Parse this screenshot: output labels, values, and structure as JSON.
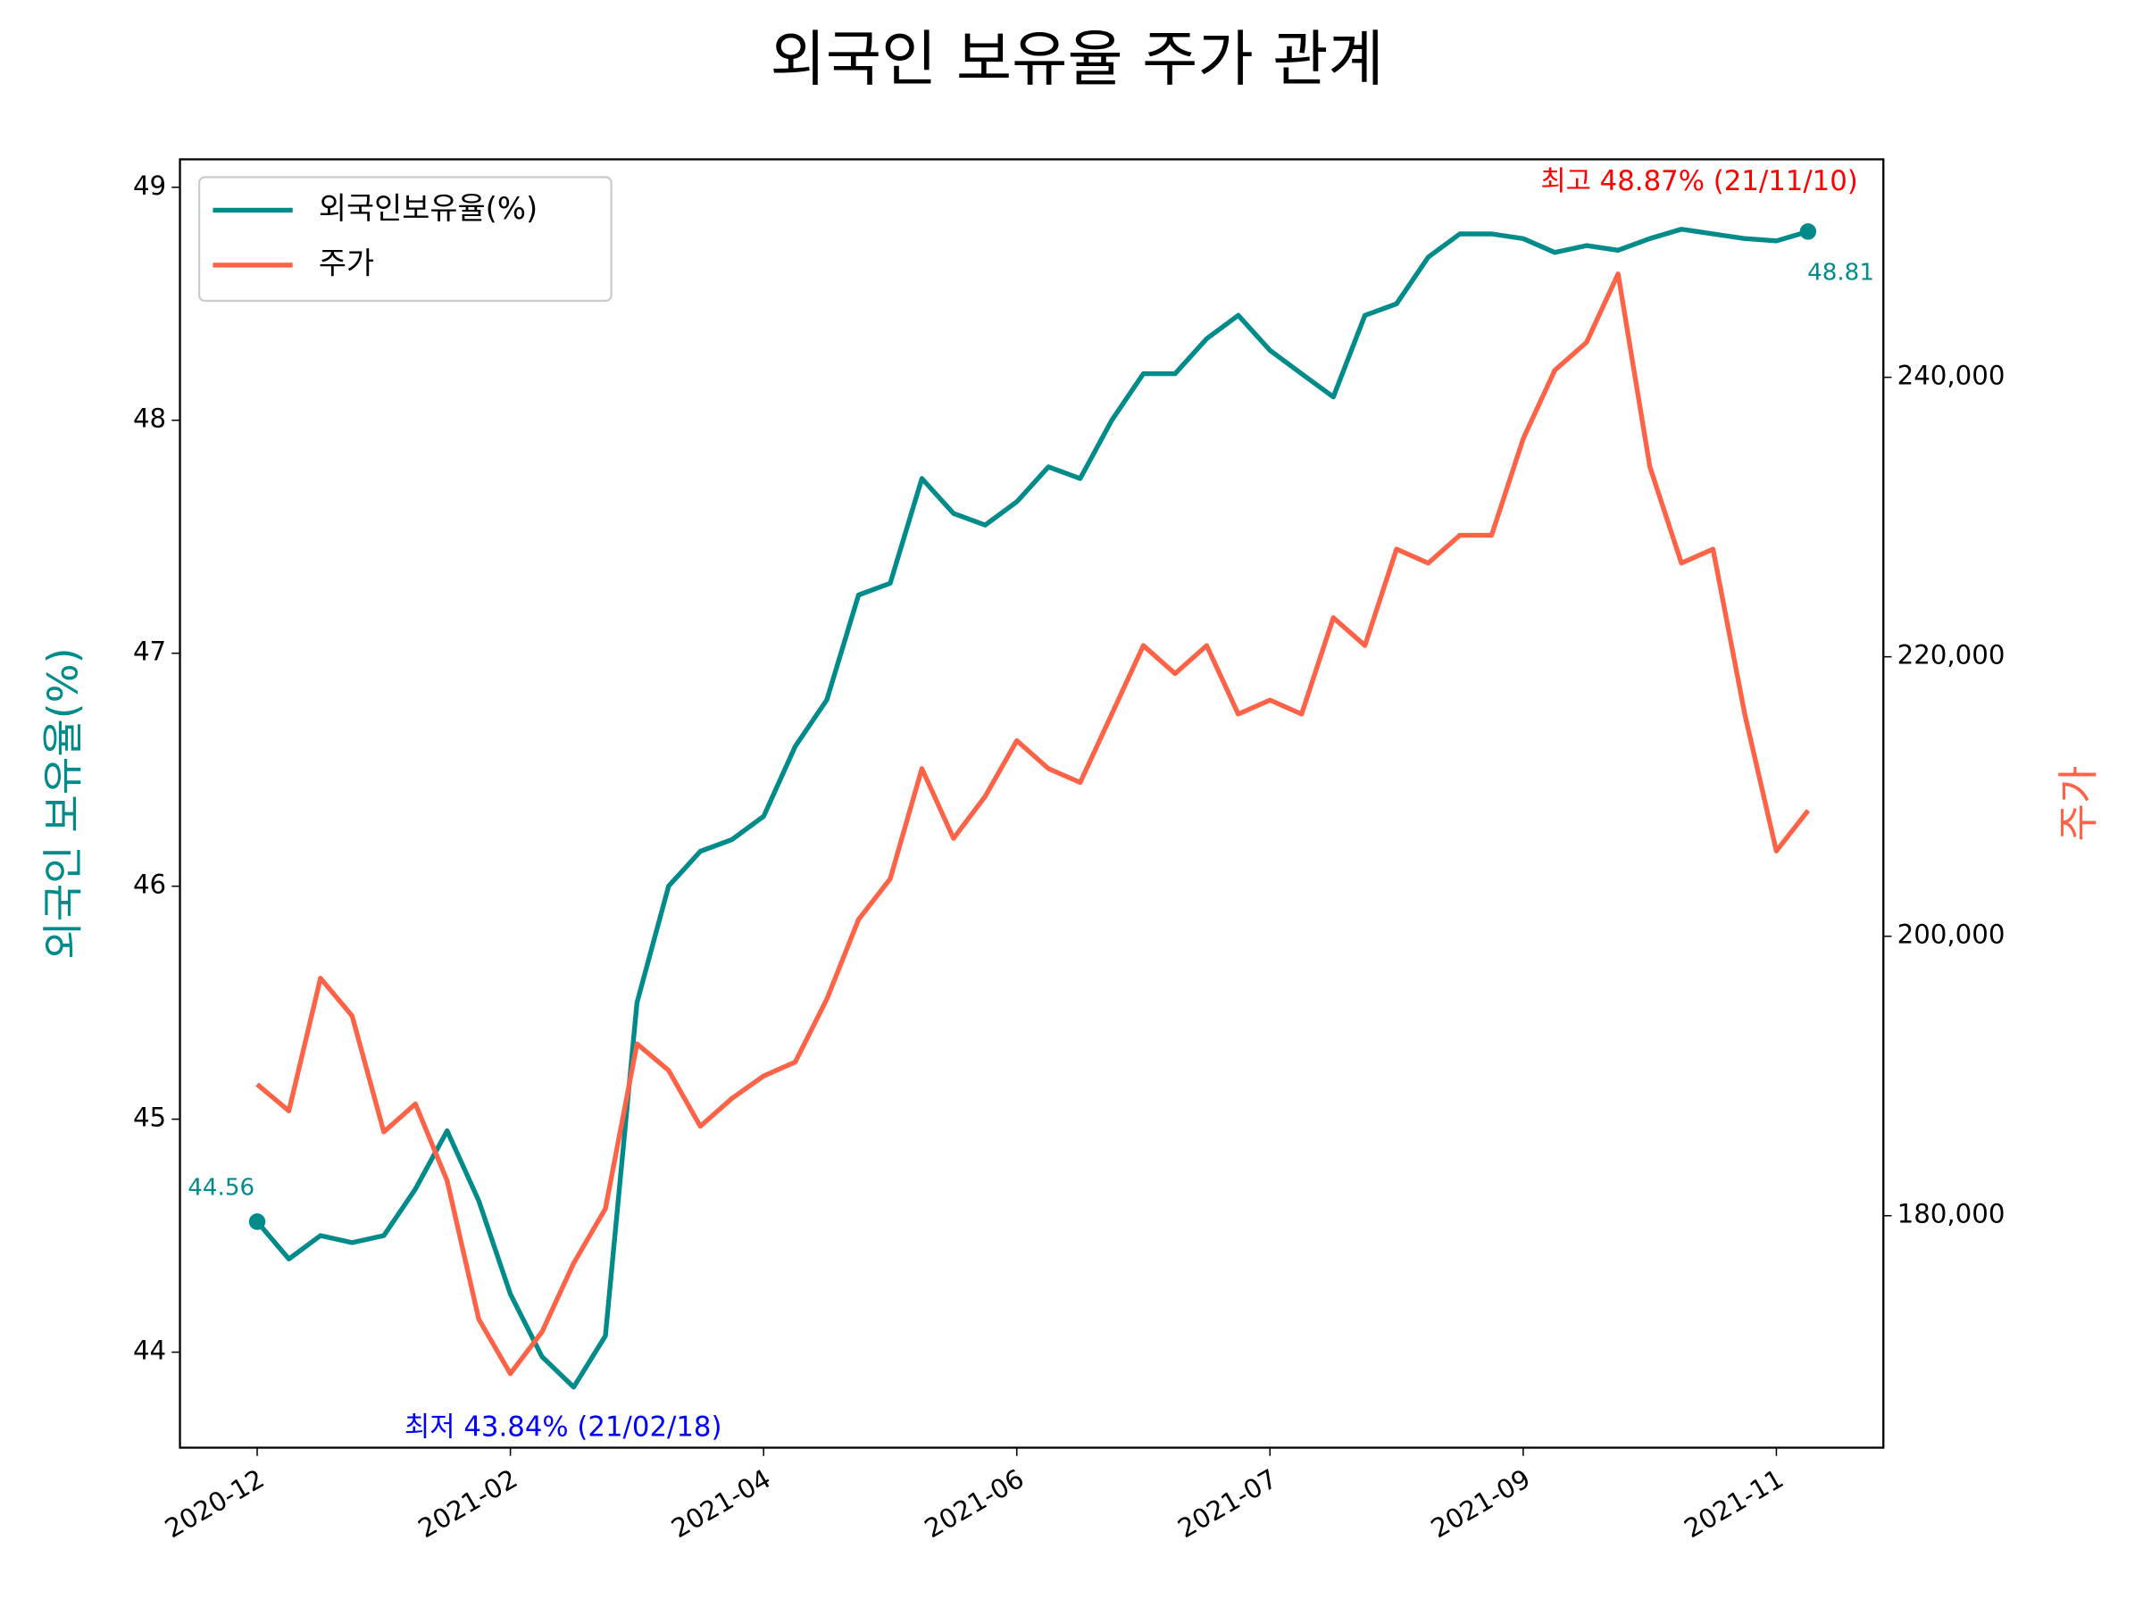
{
  "chart_data": {
    "type": "line",
    "title": "외국인 보유율 주가 관계",
    "ylabel": "외국인 보유율(%)",
    "y2label": "주가",
    "x": [
      0,
      5,
      10,
      15,
      20,
      25,
      30,
      35,
      40,
      45,
      50,
      55,
      60,
      65,
      70,
      75,
      80,
      85,
      90,
      95,
      100,
      105,
      110,
      115,
      120,
      125,
      130,
      135,
      140,
      145,
      150,
      155,
      160,
      165,
      170,
      175,
      180,
      185,
      190,
      195,
      200,
      205,
      210,
      215,
      220,
      225,
      230,
      235,
      240,
      245
    ],
    "series": [
      {
        "name": "외국인보유율(%)",
        "color": "#008b8b",
        "values": [
          44.56,
          44.4,
          44.5,
          44.47,
          44.5,
          44.7,
          44.95,
          44.65,
          44.25,
          43.98,
          43.85,
          44.07,
          45.5,
          46.0,
          46.15,
          46.2,
          46.3,
          46.6,
          46.8,
          47.25,
          47.3,
          47.75,
          47.6,
          47.55,
          47.65,
          47.8,
          47.75,
          48.0,
          48.2,
          48.2,
          48.35,
          48.45,
          48.3,
          48.2,
          48.1,
          48.45,
          48.5,
          48.7,
          48.8,
          48.8,
          48.78,
          48.72,
          48.75,
          48.73,
          48.78,
          48.82,
          48.8,
          48.78,
          48.77,
          48.81
        ]
      },
      {
        "name": "주가",
        "color": "#ff6347",
        "axis": "y2",
        "values": [
          189400,
          187500,
          197000,
          194300,
          186000,
          188000,
          182500,
          172600,
          168700,
          171700,
          176600,
          180500,
          192300,
          190400,
          186400,
          188400,
          190000,
          191000,
          195500,
          201200,
          204100,
          212000,
          207000,
          210000,
          214000,
          212000,
          211000,
          215900,
          220800,
          218800,
          220800,
          215900,
          216900,
          215900,
          222800,
          220800,
          227700,
          226700,
          228700,
          228700,
          235600,
          240500,
          242500,
          247400,
          233600,
          226700,
          227700,
          215900,
          206100,
          209000
        ]
      }
    ],
    "xlim": [
      -12.2,
      256.9
    ],
    "xticks": [
      {
        "value": 0,
        "label": "2020-12"
      },
      {
        "value": 40,
        "label": "2021-02"
      },
      {
        "value": 80,
        "label": "2021-04"
      },
      {
        "value": 120,
        "label": "2021-06"
      },
      {
        "value": 160,
        "label": "2021-07"
      },
      {
        "value": 200,
        "label": "2021-09"
      },
      {
        "value": 240,
        "label": "2021-11"
      }
    ],
    "ylim": [
      43.59,
      49.12
    ],
    "yticks": [
      44,
      45,
      46,
      47,
      48,
      49
    ],
    "y2lim": [
      163400,
      255600
    ],
    "y2ticks": [
      {
        "value": 180000,
        "label": "180,000"
      },
      {
        "value": 200000,
        "label": "200,000"
      },
      {
        "value": 220000,
        "label": "220,000"
      },
      {
        "value": 240000,
        "label": "240,000"
      }
    ],
    "legend": "upper left",
    "annotations": [
      {
        "text": "최고 48.87% (21/11/10)",
        "color": "#ff0000"
      },
      {
        "text": "최저 43.84% (21/02/18)",
        "color": "#0000ff"
      },
      {
        "text": "44.56",
        "color": "#008b8b"
      },
      {
        "text": "48.81",
        "color": "#008b8b"
      }
    ]
  }
}
